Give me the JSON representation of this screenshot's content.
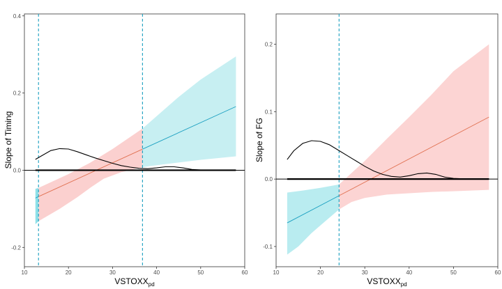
{
  "chart_data": [
    {
      "type": "line",
      "ylabel": "Slope of Timing",
      "xlabel_main": "VSTOXX",
      "xlabel_sub": "pd",
      "xlim": [
        10,
        60
      ],
      "ylim": [
        -0.25,
        0.405
      ],
      "x_ticks": [
        10,
        20,
        30,
        40,
        50,
        60
      ],
      "y_ticks": [
        -0.2,
        0,
        0.2,
        0.4
      ],
      "x_tick_labels": [
        "10",
        "20",
        "30",
        "40",
        "50",
        "60"
      ],
      "y_tick_labels": [
        "-0.2",
        "0.0",
        "0.2",
        "0.4"
      ],
      "hline": 0,
      "vlines": [
        13.2,
        36.8
      ],
      "fit_line": {
        "x0": 12.5,
        "y0": -0.072,
        "x1": 58,
        "y1": 0.165
      },
      "bands": [
        {
          "color": "#8fe0e8",
          "upper": [
            [
              12.5,
              -0.048
            ],
            [
              13.2,
              -0.046
            ]
          ],
          "lower": [
            [
              12.5,
              -0.14
            ],
            [
              13.2,
              -0.132
            ]
          ]
        },
        {
          "color": "#fbd0cf",
          "upper": [
            [
              13.2,
              -0.046
            ],
            [
              20,
              -0.01
            ],
            [
              25,
              0.02
            ],
            [
              30,
              0.055
            ],
            [
              36.8,
              0.108
            ]
          ],
          "lower": [
            [
              13.2,
              -0.132
            ],
            [
              18,
              -0.1
            ],
            [
              22,
              -0.07
            ],
            [
              25,
              -0.045
            ],
            [
              28,
              -0.022
            ],
            [
              32,
              -0.005
            ],
            [
              36.8,
              0.008
            ]
          ]
        },
        {
          "color": "#c7eff2",
          "upper": [
            [
              36.8,
              0.108
            ],
            [
              40,
              0.14
            ],
            [
              45,
              0.19
            ],
            [
              50,
              0.235
            ],
            [
              58,
              0.295
            ]
          ],
          "lower": [
            [
              36.8,
              0.008
            ],
            [
              40,
              0.013
            ],
            [
              45,
              0.02
            ],
            [
              50,
              0.027
            ],
            [
              58,
              0.036
            ]
          ]
        }
      ],
      "density": [
        [
          12.5,
          0.028
        ],
        [
          14,
          0.038
        ],
        [
          16,
          0.051
        ],
        [
          18,
          0.056
        ],
        [
          20,
          0.055
        ],
        [
          22,
          0.048
        ],
        [
          24,
          0.04
        ],
        [
          26,
          0.032
        ],
        [
          28,
          0.025
        ],
        [
          30,
          0.018
        ],
        [
          32,
          0.012
        ],
        [
          34,
          0.008
        ],
        [
          36,
          0.005
        ],
        [
          38,
          0.004
        ],
        [
          40,
          0.006
        ],
        [
          42,
          0.009
        ],
        [
          44,
          0.009
        ],
        [
          46,
          0.006
        ],
        [
          48,
          0.002
        ],
        [
          50,
          0.0006
        ],
        [
          53,
          0.0002
        ],
        [
          58,
          0.0001
        ]
      ],
      "rug": [
        12.5,
        58
      ]
    },
    {
      "type": "line",
      "ylabel": "Slope of FG",
      "xlabel_main": "VSTOXX",
      "xlabel_sub": "pd",
      "xlim": [
        10,
        60
      ],
      "ylim": [
        -0.13,
        0.245
      ],
      "x_ticks": [
        10,
        20,
        30,
        40,
        50,
        60
      ],
      "y_ticks": [
        -0.1,
        0,
        0.1,
        0.2
      ],
      "x_tick_labels": [
        "10",
        "20",
        "30",
        "40",
        "50",
        "60"
      ],
      "y_tick_labels": [
        "-0.1",
        "0.0",
        "0.1",
        "0.2"
      ],
      "hline": 0,
      "vlines": [
        24.2
      ],
      "fit_line": {
        "x0": 12.5,
        "y0": -0.065,
        "x1": 58,
        "y1": 0.092
      },
      "bands": [
        {
          "color": "#b9ecf0",
          "upper": [
            [
              12.5,
              -0.02
            ],
            [
              16,
              -0.017
            ],
            [
              20,
              -0.013
            ],
            [
              24.2,
              -0.008
            ]
          ],
          "lower": [
            [
              12.5,
              -0.112
            ],
            [
              15,
              -0.1
            ],
            [
              18,
              -0.08
            ],
            [
              21,
              -0.063
            ],
            [
              24.2,
              -0.045
            ]
          ]
        },
        {
          "color": "#fcd4d3",
          "upper": [
            [
              24.2,
              -0.008
            ],
            [
              30,
              0.027
            ],
            [
              35,
              0.06
            ],
            [
              40,
              0.092
            ],
            [
              45,
              0.125
            ],
            [
              50,
              0.16
            ],
            [
              58,
              0.2
            ]
          ],
          "lower": [
            [
              24.2,
              -0.045
            ],
            [
              27,
              -0.034
            ],
            [
              30,
              -0.028
            ],
            [
              35,
              -0.023
            ],
            [
              40,
              -0.021
            ],
            [
              45,
              -0.019
            ],
            [
              50,
              -0.018
            ],
            [
              58,
              -0.016
            ]
          ]
        }
      ],
      "density": [
        [
          12.5,
          0.029
        ],
        [
          14,
          0.042
        ],
        [
          16,
          0.053
        ],
        [
          18,
          0.057
        ],
        [
          20,
          0.056
        ],
        [
          22,
          0.051
        ],
        [
          24,
          0.043
        ],
        [
          26,
          0.035
        ],
        [
          28,
          0.027
        ],
        [
          30,
          0.019
        ],
        [
          32,
          0.012
        ],
        [
          34,
          0.007
        ],
        [
          36,
          0.004
        ],
        [
          38,
          0.003
        ],
        [
          40,
          0.005
        ],
        [
          42,
          0.008
        ],
        [
          44,
          0.009
        ],
        [
          46,
          0.007
        ],
        [
          48,
          0.003
        ],
        [
          50,
          0.001
        ],
        [
          53,
          0.0003
        ],
        [
          58,
          0.0001
        ]
      ],
      "rug": [
        12.5,
        58
      ]
    }
  ]
}
